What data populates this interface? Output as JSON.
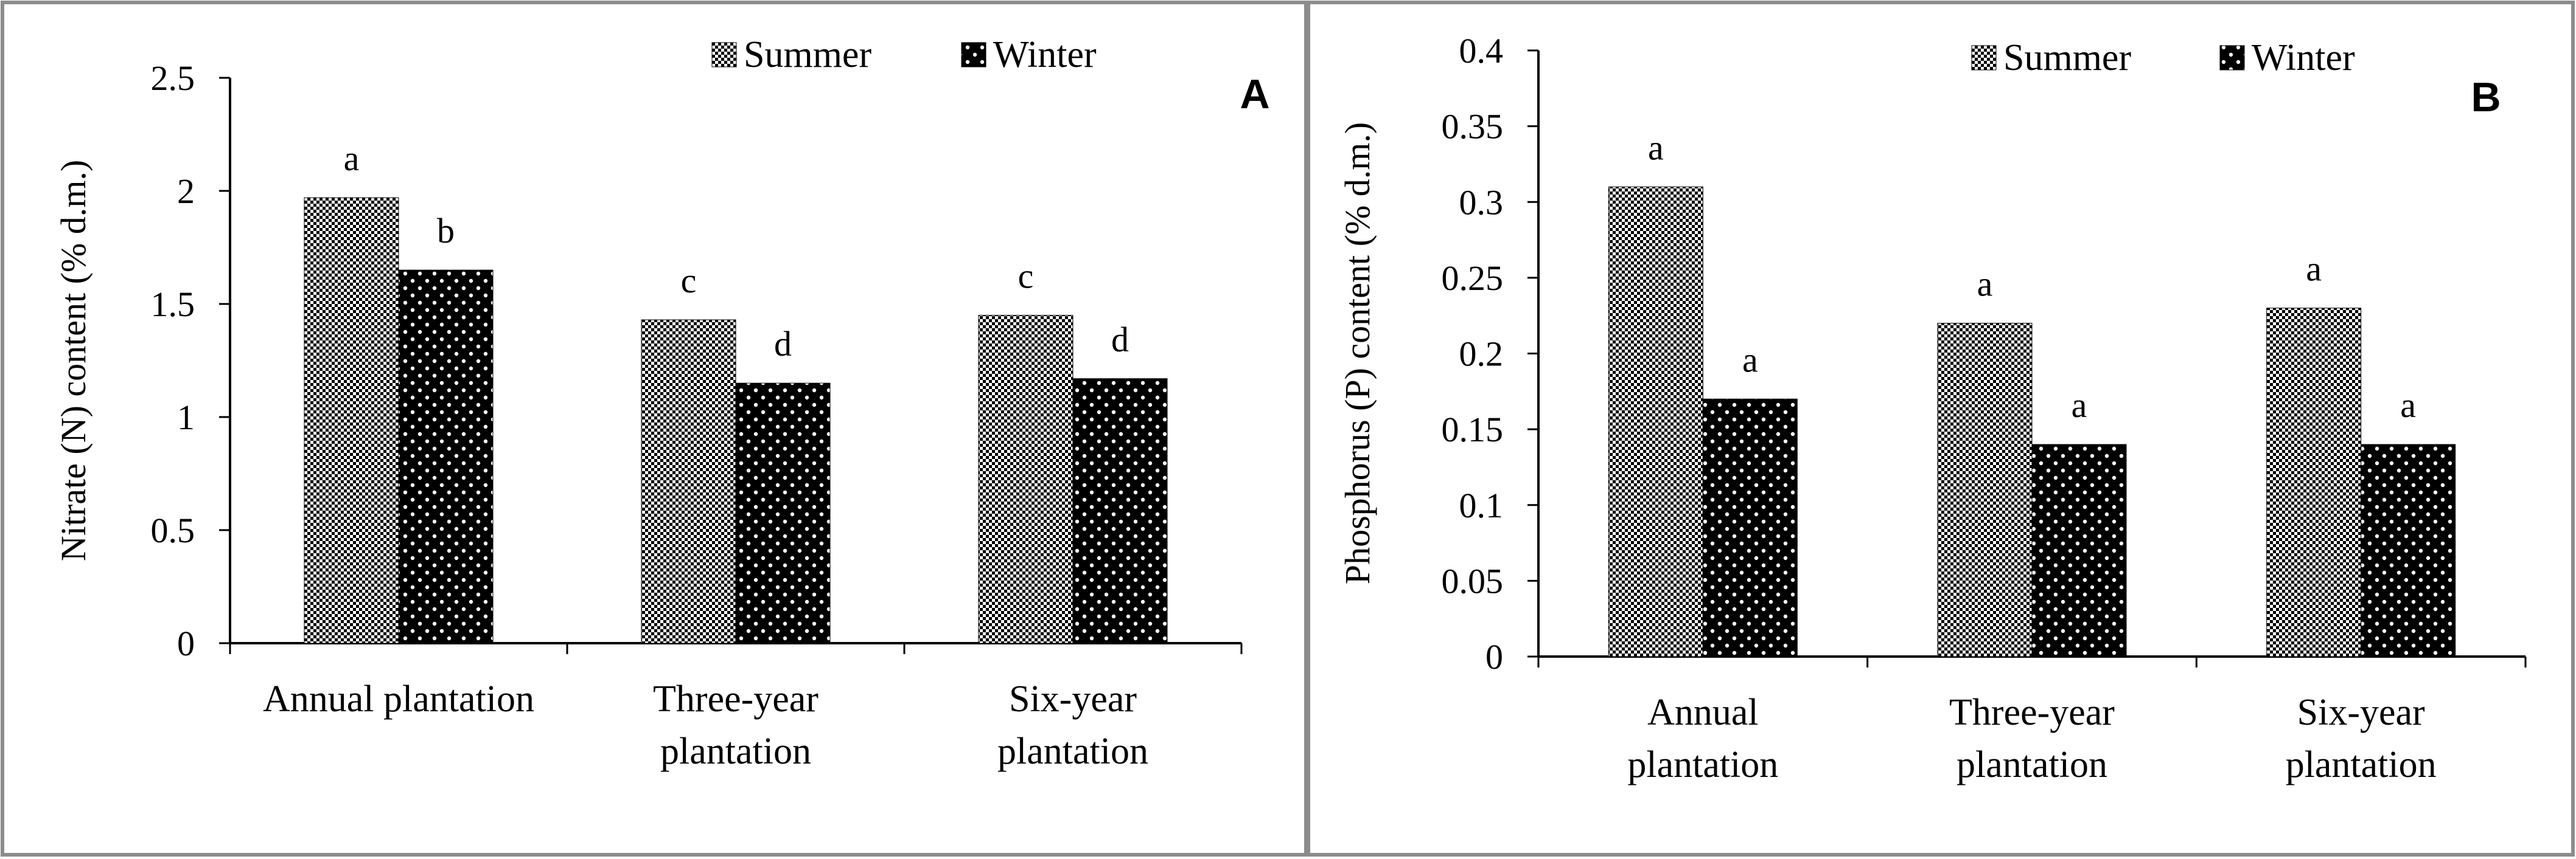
{
  "colors": {
    "frame": "#8c8c8c",
    "bar_stroke": "#000000"
  },
  "chart_data": [
    {
      "type": "bar",
      "panel_letter": "A",
      "title": "",
      "xlabel": "",
      "ylabel": "Nitrate (N) content (% d.m.)",
      "ylim": [
        0,
        2.5
      ],
      "yticks": [
        "0",
        "0.5",
        "1",
        "1.5",
        "2",
        "2.5"
      ],
      "grid": false,
      "legend_position": "top",
      "categories": [
        [
          "Annual plantation"
        ],
        [
          "Three-year",
          "plantation"
        ],
        [
          "Six-year",
          "plantation"
        ]
      ],
      "series": [
        {
          "name": "Summer",
          "pattern": "checker",
          "values": [
            1.97,
            1.43,
            1.45
          ],
          "labels": [
            "a",
            "c",
            "c"
          ]
        },
        {
          "name": "Winter",
          "pattern": "dots",
          "values": [
            1.65,
            1.15,
            1.17
          ],
          "labels": [
            "b",
            "d",
            "d"
          ]
        }
      ]
    },
    {
      "type": "bar",
      "panel_letter": "B",
      "title": "",
      "xlabel": "",
      "ylabel": "Phosphorus (P) content (% d.m.)",
      "ylim": [
        0,
        0.4
      ],
      "yticks": [
        "0",
        "0.05",
        "0.1",
        "0.15",
        "0.2",
        "0.25",
        "0.3",
        "0.35",
        "0.4"
      ],
      "grid": false,
      "legend_position": "top",
      "categories": [
        [
          "Annual",
          "plantation"
        ],
        [
          "Three-year",
          "plantation"
        ],
        [
          "Six-year",
          "plantation"
        ]
      ],
      "series": [
        {
          "name": "Summer",
          "pattern": "checker",
          "values": [
            0.31,
            0.22,
            0.23
          ],
          "labels": [
            "a",
            "a",
            "a"
          ]
        },
        {
          "name": "Winter",
          "pattern": "dots",
          "values": [
            0.17,
            0.14,
            0.14
          ],
          "labels": [
            "a",
            "a",
            "a"
          ]
        }
      ]
    }
  ]
}
